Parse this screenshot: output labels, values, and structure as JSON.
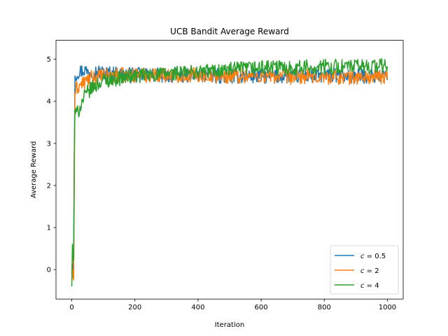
{
  "chart_data": {
    "type": "line",
    "title": "UCB Bandit Average Reward",
    "xlabel": "Iteration",
    "ylabel": "Average Reward",
    "xlim": [
      -50,
      1050
    ],
    "ylim": [
      -0.7,
      5.45
    ],
    "xticks": [
      0,
      200,
      400,
      600,
      800,
      1000
    ],
    "yticks": [
      0,
      1,
      2,
      3,
      4,
      5
    ],
    "grid": false,
    "legend_position": "lower-right",
    "series": [
      {
        "name": "c = 0.5",
        "legend_var": "c",
        "legend_value": "= 0.5",
        "color": "#1f77b4",
        "x": [
          0,
          2,
          4,
          6,
          8,
          10,
          15,
          20,
          30,
          40,
          50,
          60,
          80,
          100,
          150,
          200,
          300,
          400,
          500,
          600,
          700,
          800,
          900,
          1000
        ],
        "y": [
          -0.1,
          0.15,
          -0.2,
          0.4,
          2.6,
          4.6,
          4.65,
          4.7,
          4.72,
          4.75,
          4.7,
          4.72,
          4.7,
          4.68,
          4.65,
          4.63,
          4.62,
          4.62,
          4.6,
          4.6,
          4.6,
          4.6,
          4.6,
          4.6
        ],
        "noise": 0.12
      },
      {
        "name": "c = 2",
        "legend_var": "c",
        "legend_value": "= 2",
        "color": "#ff7f0e",
        "x": [
          0,
          2,
          4,
          6,
          8,
          10,
          15,
          20,
          30,
          40,
          50,
          60,
          80,
          100,
          150,
          200,
          300,
          400,
          500,
          600,
          700,
          800,
          900,
          1000
        ],
        "y": [
          0.1,
          -0.2,
          0.0,
          -0.25,
          2.0,
          4.2,
          4.3,
          4.35,
          4.4,
          4.45,
          4.5,
          4.55,
          4.58,
          4.6,
          4.62,
          4.63,
          4.63,
          4.62,
          4.6,
          4.6,
          4.58,
          4.58,
          4.57,
          4.57
        ],
        "noise": 0.12
      },
      {
        "name": "c = 4",
        "legend_var": "c",
        "legend_value": "= 4",
        "color": "#2ca02c",
        "x": [
          0,
          2,
          4,
          6,
          8,
          10,
          15,
          20,
          30,
          40,
          50,
          60,
          80,
          100,
          150,
          200,
          300,
          400,
          500,
          600,
          700,
          800,
          900,
          1000
        ],
        "y": [
          -0.4,
          0.6,
          0.2,
          0.3,
          2.8,
          3.8,
          3.7,
          3.75,
          3.95,
          4.1,
          4.2,
          4.3,
          4.4,
          4.5,
          4.55,
          4.6,
          4.65,
          4.7,
          4.75,
          4.8,
          4.8,
          4.82,
          4.83,
          4.85
        ],
        "noise": 0.12
      }
    ]
  }
}
